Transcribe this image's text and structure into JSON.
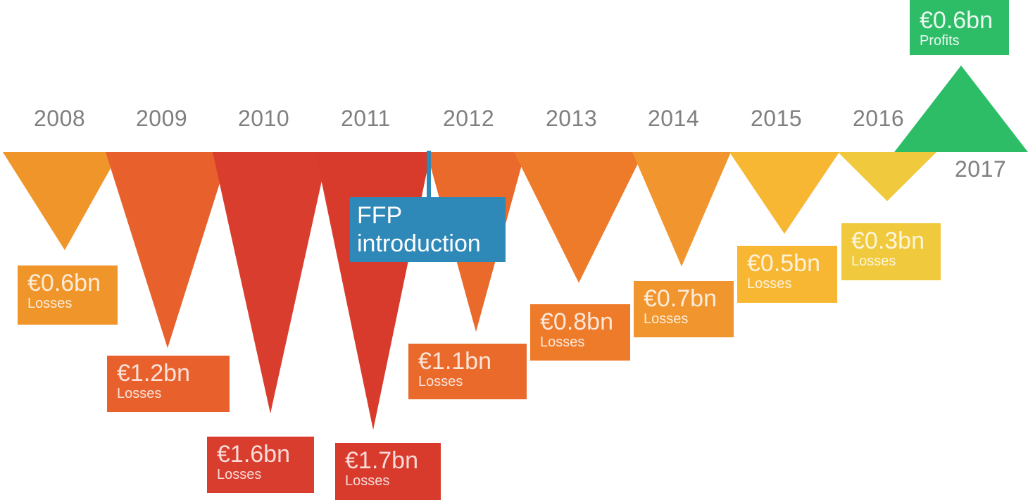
{
  "chart_data": {
    "type": "bar",
    "title": "",
    "xlabel": "",
    "ylabel": "",
    "categories": [
      "2008",
      "2009",
      "2010",
      "2011",
      "2012",
      "2013",
      "2014",
      "2015",
      "2016",
      "2017"
    ],
    "values": [
      -0.6,
      -1.2,
      -1.6,
      -1.7,
      -1.1,
      -0.8,
      -0.7,
      -0.5,
      -0.3,
      0.6
    ],
    "unit": "€bn",
    "value_labels": [
      "€0.6bn",
      "€1.2bn",
      "€1.6bn",
      "€1.7bn",
      "€1.1bn",
      "€0.8bn",
      "€0.7bn",
      "€0.5bn",
      "€0.3bn",
      "€0.6bn"
    ],
    "kind_labels": [
      "Losses",
      "Losses",
      "Losses",
      "Losses",
      "Losses",
      "Losses",
      "Losses",
      "Losses",
      "Losses",
      "Profits"
    ],
    "colors": [
      "#f0952a",
      "#e8612d",
      "#d93d2e",
      "#d83a2c",
      "#e96a2b",
      "#ee7b2a",
      "#f1952e",
      "#f7b733",
      "#f0c93c",
      "#2dbd67"
    ],
    "annotation": {
      "label": "FFP introduction",
      "between": [
        "2011",
        "2012"
      ],
      "color": "#2e88b8"
    },
    "ylim": [
      -1.7,
      0.6
    ]
  }
}
